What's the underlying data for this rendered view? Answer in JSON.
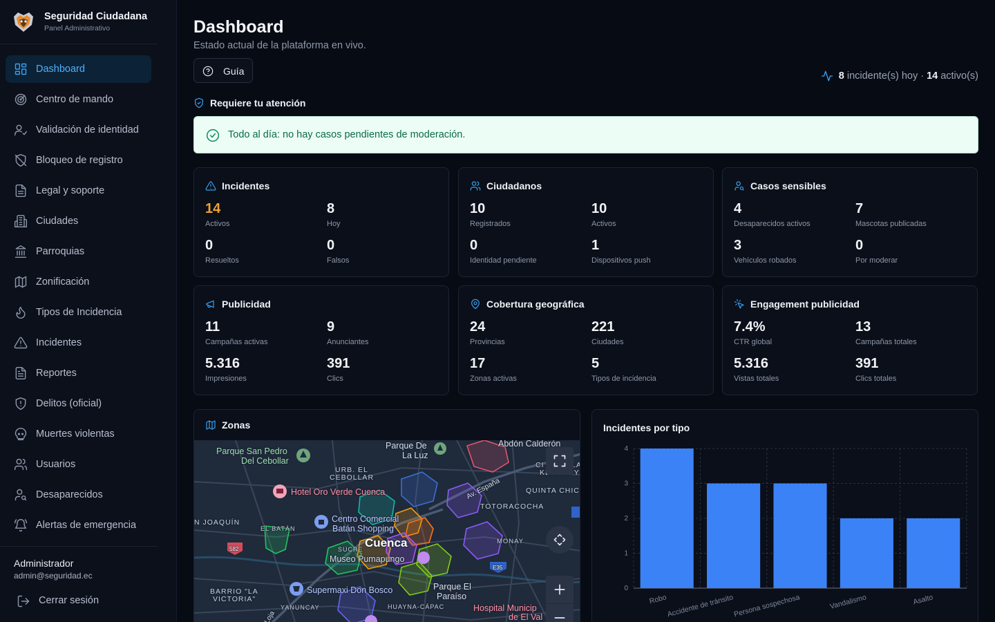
{
  "brand": {
    "title": "Seguridad Ciudadana",
    "subtitle": "Panel Administrativo"
  },
  "sidebar": {
    "items": [
      {
        "label": "Dashboard",
        "icon": "dashboard-icon",
        "active": true
      },
      {
        "label": "Centro de mando",
        "icon": "target-icon"
      },
      {
        "label": "Validación de identidad",
        "icon": "user-check-icon"
      },
      {
        "label": "Bloqueo de registro",
        "icon": "shield-off-icon"
      },
      {
        "label": "Legal y soporte",
        "icon": "file-icon"
      },
      {
        "label": "Ciudades",
        "icon": "building-icon"
      },
      {
        "label": "Parroquias",
        "icon": "landmark-icon"
      },
      {
        "label": "Zonificación",
        "icon": "map-icon"
      },
      {
        "label": "Tipos de Incidencia",
        "icon": "flame-icon"
      },
      {
        "label": "Incidentes",
        "icon": "alert-triangle-icon"
      },
      {
        "label": "Reportes",
        "icon": "file-text-icon"
      },
      {
        "label": "Delitos (oficial)",
        "icon": "shield-alert-icon"
      },
      {
        "label": "Muertes violentas",
        "icon": "skull-icon"
      },
      {
        "label": "Usuarios",
        "icon": "users-icon"
      },
      {
        "label": "Desaparecidos",
        "icon": "user-search-icon"
      },
      {
        "label": "Alertas de emergencia",
        "icon": "bell-ring-icon"
      }
    ],
    "user": {
      "name": "Administrador",
      "email": "admin@seguridad.ec"
    },
    "logout_label": "Cerrar sesión"
  },
  "header": {
    "title": "Dashboard",
    "subtitle": "Estado actual de la plataforma en vivo.",
    "guide_label": "Guía",
    "live": {
      "today_count": "8",
      "today_text": "incidente(s) hoy ·",
      "active_count": "14",
      "active_text": "activo(s)"
    }
  },
  "attention": {
    "title": "Requiere tu atención",
    "message": "Todo al día: no hay casos pendientes de moderación."
  },
  "cards": [
    {
      "title": "Incidentes",
      "icon": "alert-triangle-icon",
      "stats": [
        {
          "value": "14",
          "label": "Activos",
          "highlight": "#f0a033"
        },
        {
          "value": "8",
          "label": "Hoy"
        },
        {
          "value": "0",
          "label": "Resueltos"
        },
        {
          "value": "0",
          "label": "Falsos"
        }
      ]
    },
    {
      "title": "Ciudadanos",
      "icon": "users-icon",
      "stats": [
        {
          "value": "10",
          "label": "Registrados"
        },
        {
          "value": "10",
          "label": "Activos"
        },
        {
          "value": "0",
          "label": "Identidad pendiente"
        },
        {
          "value": "1",
          "label": "Dispositivos push"
        }
      ]
    },
    {
      "title": "Casos sensibles",
      "icon": "user-search-icon",
      "stats": [
        {
          "value": "4",
          "label": "Desaparecidos activos"
        },
        {
          "value": "7",
          "label": "Mascotas publicadas"
        },
        {
          "value": "3",
          "label": "Vehículos robados"
        },
        {
          "value": "0",
          "label": "Por moderar"
        }
      ]
    },
    {
      "title": "Publicidad",
      "icon": "megaphone-icon",
      "stats": [
        {
          "value": "11",
          "label": "Campañas activas"
        },
        {
          "value": "9",
          "label": "Anunciantes"
        },
        {
          "value": "5.316",
          "label": "Impresiones"
        },
        {
          "value": "391",
          "label": "Clics"
        }
      ]
    },
    {
      "title": "Cobertura geográfica",
      "icon": "map-pin-icon",
      "stats": [
        {
          "value": "24",
          "label": "Provincias"
        },
        {
          "value": "221",
          "label": "Ciudades"
        },
        {
          "value": "17",
          "label": "Zonas activas"
        },
        {
          "value": "5",
          "label": "Tipos de incidencia"
        }
      ]
    },
    {
      "title": "Engagement publicidad",
      "icon": "pointer-click-icon",
      "stats": [
        {
          "value": "7.4%",
          "label": "CTR global"
        },
        {
          "value": "13",
          "label": "Campañas totales"
        },
        {
          "value": "5.316",
          "label": "Vistas totales"
        },
        {
          "value": "391",
          "label": "Clics totales"
        }
      ]
    }
  ],
  "map": {
    "title": "Zonas",
    "labels": {
      "san_pedro_1": "Parque San Pedro",
      "san_pedro_2": "Del Cebollar",
      "parque_de_1": "Parque De",
      "parque_de_2": "La Luz",
      "abdon": "Abdón Calderón",
      "ci": "CI",
      "la": "LA",
      "kennedy": "KENNEDY",
      "urb_1": "URB. EL",
      "urb_2": "CEBOLLAR",
      "hotel": "Hotel Oro Verde Cuenca",
      "av_espana": "Av. España",
      "quinta": "QUINTA CHIC",
      "totoracocha": "TOTORACOCHA",
      "joaquin": "N JOAQUÍN",
      "el_batan": "EL BATÁN",
      "centro_1": "Centro Comercial",
      "centro_2": "Batán Shopping",
      "cuenca": "Cuenca",
      "sucre": "SUCRE",
      "museo": "Museo Pumapungo",
      "monay": "MONAY",
      "supermaxi": "Supermaxi Don Bosco",
      "parque_el_1": "Parque El",
      "parque_el_2": "Paraíso",
      "barrio_1": "BARRIO \"LA",
      "barrio_2": "VICTORIA\"",
      "yanuncay": "YANUNCAY",
      "huayna": "HUAYNA-CÁPAC",
      "hospital_1": "Hospital Municip",
      "hospital_2": "de El Val",
      "loja": "Loja",
      "route_582": "582",
      "route_e35": "E35"
    }
  },
  "chart_data": {
    "type": "bar",
    "title": "Incidentes por tipo",
    "categories": [
      "Robo",
      "Accidente de tránsito",
      "Persona sospechosa",
      "Vandalismo",
      "Asalto"
    ],
    "values": [
      4,
      3,
      3,
      2,
      2
    ],
    "ylim": [
      0,
      4
    ],
    "yticks": [
      0,
      1,
      2,
      3,
      4
    ],
    "color": "#3b82f6",
    "grid": true
  }
}
